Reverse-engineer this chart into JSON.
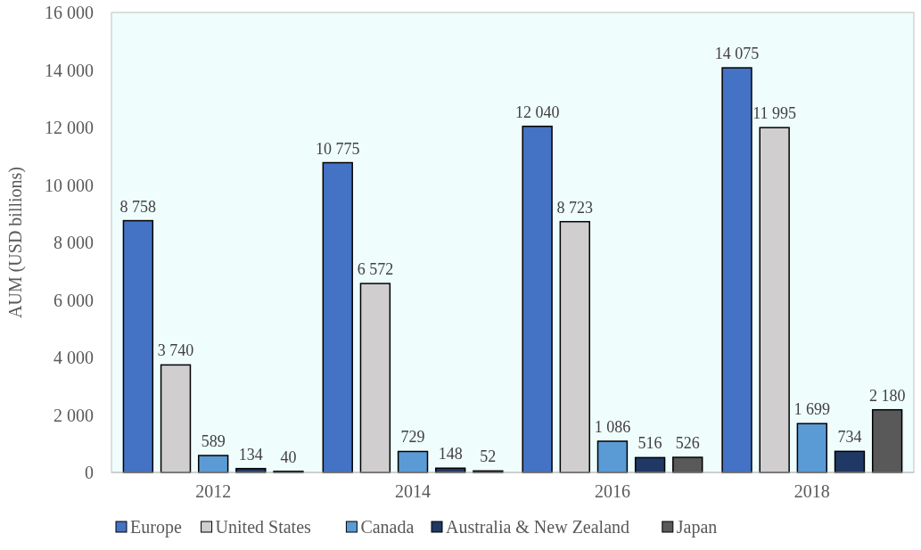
{
  "chart_data": {
    "type": "bar",
    "ylabel": "AUM (USD billions)",
    "categories": [
      "2012",
      "2014",
      "2016",
      "2018"
    ],
    "series": [
      {
        "name": "Europe",
        "color": "#4472c4",
        "values": [
          8758,
          10775,
          12040,
          14075
        ],
        "value_labels": [
          "8 758",
          "10 775",
          "12 040",
          "14 075"
        ]
      },
      {
        "name": "United States",
        "color": "#d0cece",
        "values": [
          3740,
          6572,
          8723,
          11995
        ],
        "value_labels": [
          "3 740",
          "6 572",
          "8 723",
          "11 995"
        ]
      },
      {
        "name": "Canada",
        "color": "#5b9bd5",
        "values": [
          589,
          729,
          1086,
          1699
        ],
        "value_labels": [
          "589",
          "729",
          "1 086",
          "1 699"
        ]
      },
      {
        "name": "Australia & New Zealand",
        "color": "#203864",
        "values": [
          134,
          148,
          516,
          734
        ],
        "value_labels": [
          "134",
          "148",
          "516",
          "734"
        ]
      },
      {
        "name": "Japan",
        "color": "#595959",
        "values": [
          40,
          52,
          526,
          2180
        ],
        "value_labels": [
          "40",
          "52",
          "526",
          "2 180"
        ]
      }
    ],
    "ylim": [
      0,
      16000
    ],
    "yticks": [
      0,
      {
        "value": 2000,
        "label": "2 000"
      },
      {
        "value": 4000,
        "label": "4 000"
      },
      {
        "value": 6000,
        "label": "6 000"
      },
      {
        "value": 8000,
        "label": "8 000"
      },
      {
        "value": 10000,
        "label": "10 000"
      },
      {
        "value": 12000,
        "label": "12 000"
      },
      {
        "value": 14000,
        "label": "14 000"
      },
      {
        "value": 16000,
        "label": "16 000"
      }
    ],
    "grid": false,
    "legend": "bottom"
  }
}
